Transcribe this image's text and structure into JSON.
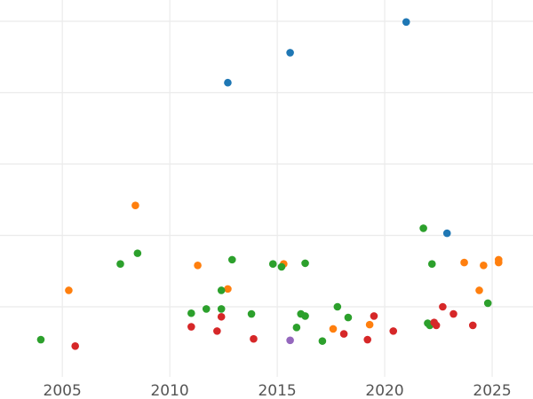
{
  "chart_data": {
    "type": "scatter",
    "title": "",
    "xlabel": "",
    "ylabel": "",
    "xlim": [
      2002.1,
      2026.9
    ],
    "ylim": [
      -0.1,
      5.1
    ],
    "grid": true,
    "legend": "none",
    "x_ticks": [
      2005,
      2010,
      2015,
      2020,
      2025
    ],
    "x_tick_labels": [
      "2005",
      "2010",
      "2015",
      "2020",
      "2025"
    ],
    "y_gridlines": [
      0,
      1,
      2,
      3,
      4,
      5
    ],
    "series": [
      {
        "color": "#1f77b4",
        "points": [
          {
            "x": 2012.7,
            "y": 3.14
          },
          {
            "x": 2015.6,
            "y": 3.56
          },
          {
            "x": 2021.0,
            "y": 3.99
          },
          {
            "x": 2022.9,
            "y": 1.03
          }
        ]
      },
      {
        "color": "#ff7f0e",
        "points": [
          {
            "x": 2005.3,
            "y": 0.23
          },
          {
            "x": 2008.4,
            "y": 1.42
          },
          {
            "x": 2011.3,
            "y": 0.58
          },
          {
            "x": 2012.7,
            "y": 0.25
          },
          {
            "x": 2015.3,
            "y": 0.6
          },
          {
            "x": 2017.6,
            "y": -0.31
          },
          {
            "x": 2019.3,
            "y": -0.25
          },
          {
            "x": 2023.7,
            "y": 0.62
          },
          {
            "x": 2024.4,
            "y": 0.23
          },
          {
            "x": 2024.6,
            "y": 0.58
          },
          {
            "x": 2025.3,
            "y": 0.66
          },
          {
            "x": 2025.3,
            "y": 0.62
          }
        ]
      },
      {
        "color": "#2ca02c",
        "points": [
          {
            "x": 2004.0,
            "y": -0.46
          },
          {
            "x": 2007.7,
            "y": 0.6
          },
          {
            "x": 2008.5,
            "y": 0.75
          },
          {
            "x": 2011.0,
            "y": -0.09
          },
          {
            "x": 2011.7,
            "y": -0.03
          },
          {
            "x": 2012.4,
            "y": -0.03
          },
          {
            "x": 2012.4,
            "y": 0.23
          },
          {
            "x": 2012.9,
            "y": 0.66
          },
          {
            "x": 2013.8,
            "y": -0.1
          },
          {
            "x": 2014.8,
            "y": 0.6
          },
          {
            "x": 2015.2,
            "y": 0.56
          },
          {
            "x": 2015.9,
            "y": -0.29
          },
          {
            "x": 2016.1,
            "y": -0.1
          },
          {
            "x": 2016.3,
            "y": -0.13
          },
          {
            "x": 2016.3,
            "y": 0.61
          },
          {
            "x": 2017.1,
            "y": -0.48
          },
          {
            "x": 2017.8,
            "y": 0.0
          },
          {
            "x": 2018.3,
            "y": -0.15
          },
          {
            "x": 2021.8,
            "y": 1.1
          },
          {
            "x": 2022.0,
            "y": -0.23
          },
          {
            "x": 2022.1,
            "y": -0.26
          },
          {
            "x": 2022.2,
            "y": 0.6
          },
          {
            "x": 2024.8,
            "y": 0.05
          }
        ]
      },
      {
        "color": "#d62728",
        "points": [
          {
            "x": 2005.6,
            "y": -0.55
          },
          {
            "x": 2011.0,
            "y": -0.28
          },
          {
            "x": 2012.2,
            "y": -0.34
          },
          {
            "x": 2012.4,
            "y": -0.14
          },
          {
            "x": 2013.9,
            "y": -0.45
          },
          {
            "x": 2018.1,
            "y": -0.38
          },
          {
            "x": 2019.2,
            "y": -0.46
          },
          {
            "x": 2019.5,
            "y": -0.13
          },
          {
            "x": 2020.4,
            "y": -0.34
          },
          {
            "x": 2022.3,
            "y": -0.22
          },
          {
            "x": 2022.4,
            "y": -0.26
          },
          {
            "x": 2022.7,
            "y": 0.0
          },
          {
            "x": 2023.2,
            "y": -0.1
          },
          {
            "x": 2024.1,
            "y": -0.26
          }
        ]
      },
      {
        "color": "#9467bd",
        "points": [
          {
            "x": 2015.6,
            "y": -0.47
          }
        ]
      }
    ]
  }
}
